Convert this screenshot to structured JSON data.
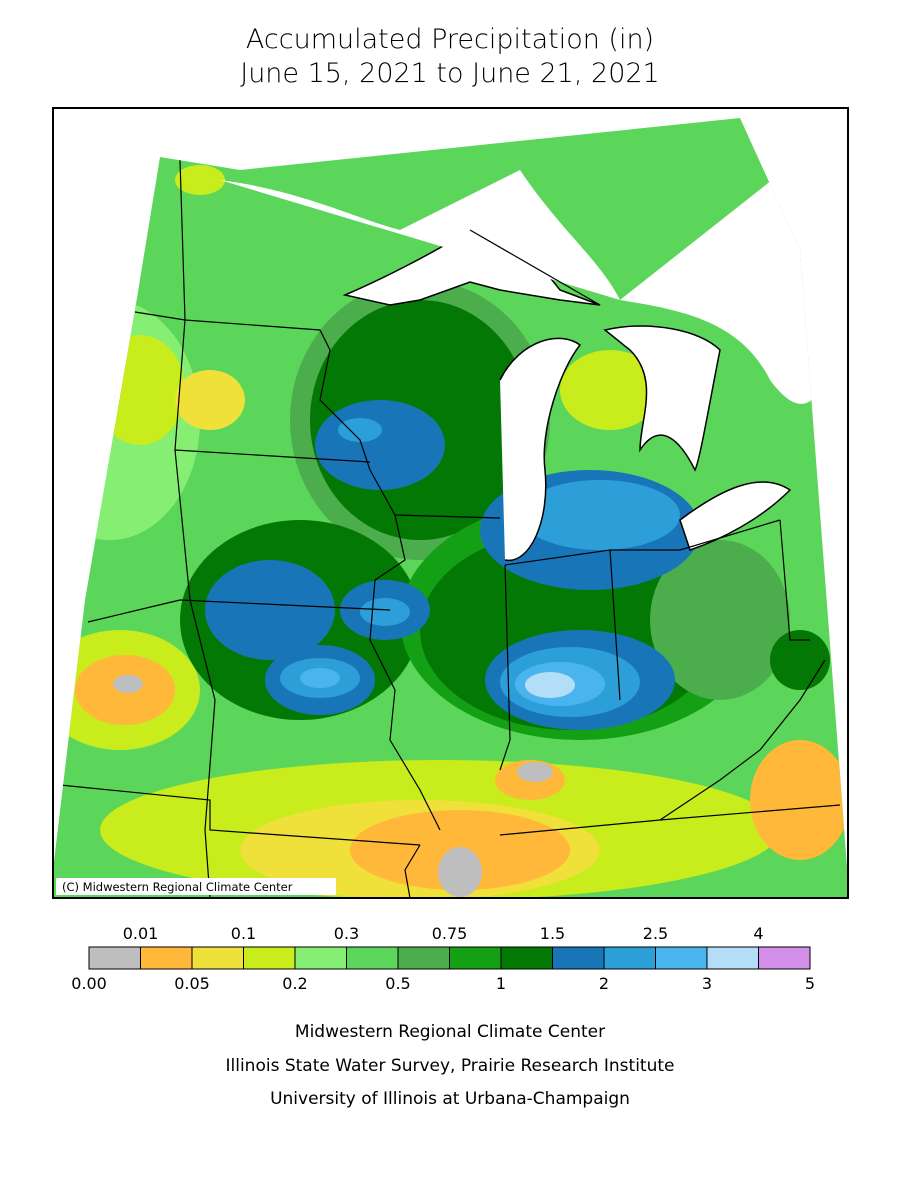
{
  "title": [
    "Accumulated Precipitation (in)",
    "June 15, 2021 to June 21, 2021"
  ],
  "map": {
    "credit": "(C) Midwestern Regional Climate Center"
  },
  "legend": {
    "labels": [
      "0.00",
      "0.01",
      "0.05",
      "0.1",
      "0.2",
      "0.3",
      "0.5",
      "0.75",
      "1",
      "1.5",
      "2",
      "2.5",
      "3",
      "4",
      "5"
    ],
    "colors": [
      "#bebebe",
      "#ffb83a",
      "#f0e03a",
      "#c8ec1c",
      "#86ee72",
      "#5cd65a",
      "#4cad4c",
      "#14a014",
      "#047804",
      "#1876b8",
      "#2c9ed8",
      "#4ab4ee",
      "#b4def8",
      "#d28ee8"
    ]
  },
  "footer": [
    "Midwestern Regional Climate Center",
    "Illinois State Water Survey, Prairie Research Institute",
    "University of Illinois at Urbana-Champaign"
  ]
}
